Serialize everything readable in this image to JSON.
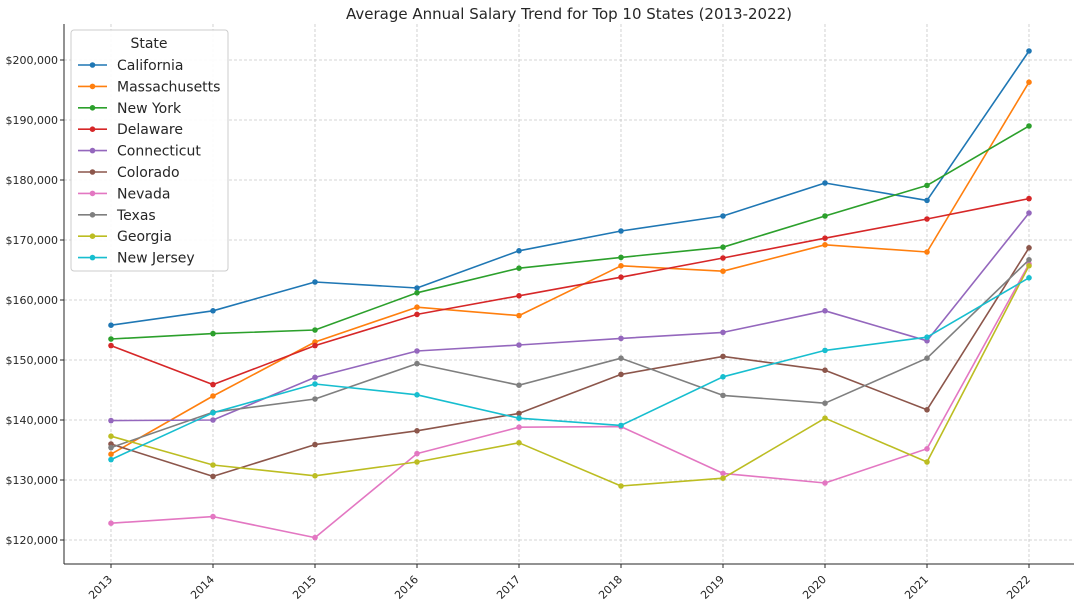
{
  "chart_data": {
    "type": "line",
    "title": "Average Annual Salary Trend for Top 10 States (2013-2022)",
    "xlabel": "",
    "ylabel": "",
    "x": [
      "2013",
      "2014",
      "2015",
      "2016",
      "2017",
      "2018",
      "2019",
      "2020",
      "2021",
      "2022"
    ],
    "ylim": [
      116000,
      206000
    ],
    "yticks": [
      120000,
      130000,
      140000,
      150000,
      160000,
      170000,
      180000,
      190000,
      200000
    ],
    "ytick_labels": [
      "$120,000",
      "$130,000",
      "$140,000",
      "$150,000",
      "$160,000",
      "$170,000",
      "$180,000",
      "$190,000",
      "$200,000"
    ],
    "grid": true,
    "legend_title": "State",
    "legend_position": "top-left",
    "series": [
      {
        "name": "California",
        "color": "#1f77b4",
        "values": [
          155800,
          158200,
          163000,
          162000,
          168200,
          171500,
          174000,
          179500,
          176600,
          201500
        ]
      },
      {
        "name": "Massachusetts",
        "color": "#ff7f0e",
        "values": [
          134300,
          144000,
          153000,
          158800,
          157400,
          165700,
          164800,
          169200,
          168000,
          196300
        ]
      },
      {
        "name": "New York",
        "color": "#2ca02c",
        "values": [
          153500,
          154400,
          155000,
          161200,
          165300,
          167100,
          168800,
          174000,
          179100,
          189000
        ]
      },
      {
        "name": "Delaware",
        "color": "#d62728",
        "values": [
          152400,
          145900,
          152400,
          157600,
          160700,
          163800,
          167000,
          170300,
          173500,
          176900
        ]
      },
      {
        "name": "Connecticut",
        "color": "#9467bd",
        "values": [
          139900,
          140000,
          147100,
          151500,
          152500,
          153600,
          154600,
          158200,
          153200,
          174500
        ]
      },
      {
        "name": "Colorado",
        "color": "#8c564b",
        "values": [
          136000,
          130600,
          135900,
          138200,
          141100,
          147600,
          150600,
          148300,
          141700,
          168700
        ]
      },
      {
        "name": "Nevada",
        "color": "#e377c2",
        "values": [
          122800,
          123900,
          120400,
          134400,
          138800,
          138900,
          131100,
          129500,
          135200,
          166000
        ]
      },
      {
        "name": "Texas",
        "color": "#7f7f7f",
        "values": [
          135400,
          141300,
          143500,
          149400,
          145800,
          150300,
          144100,
          142800,
          150300,
          166700
        ]
      },
      {
        "name": "Georgia",
        "color": "#bcbd22",
        "values": [
          137300,
          132500,
          130700,
          133000,
          136200,
          129000,
          130300,
          140300,
          133000,
          165700
        ]
      },
      {
        "name": "New Jersey",
        "color": "#17becf",
        "values": [
          133400,
          141200,
          146000,
          144200,
          140300,
          139100,
          147200,
          151600,
          153800,
          163700
        ]
      }
    ]
  }
}
